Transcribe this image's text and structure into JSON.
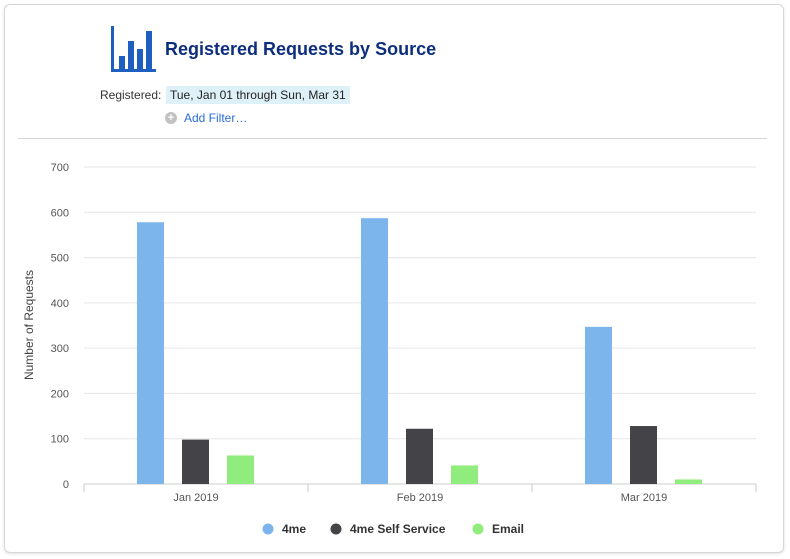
{
  "report": {
    "title": "Registered Requests by Source",
    "icon": "bar-chart-icon"
  },
  "filter": {
    "label": "Registered:",
    "value": "Tue, Jan 01 through Sun, Mar 31",
    "add_label": "Add Filter…"
  },
  "colors": {
    "title": "#0d2e7d",
    "link": "#2a6ed4",
    "filter_bg": "#dff1f8"
  },
  "chart_data": {
    "type": "bar",
    "title": "",
    "xlabel": "",
    "ylabel": "Number of Requests",
    "ylim": [
      0,
      700
    ],
    "yticks": [
      0,
      100,
      200,
      300,
      400,
      500,
      600,
      700
    ],
    "categories": [
      "Jan 2019",
      "Feb 2019",
      "Mar 2019"
    ],
    "grid": true,
    "legend_position": "bottom",
    "series": [
      {
        "name": "4me",
        "color": "#7cb5ec",
        "values": [
          578,
          587,
          347
        ]
      },
      {
        "name": "4me Self Service",
        "color": "#434348",
        "values": [
          98,
          122,
          128
        ]
      },
      {
        "name": "Email",
        "color": "#90ed7d",
        "values": [
          63,
          41,
          10
        ]
      }
    ]
  }
}
